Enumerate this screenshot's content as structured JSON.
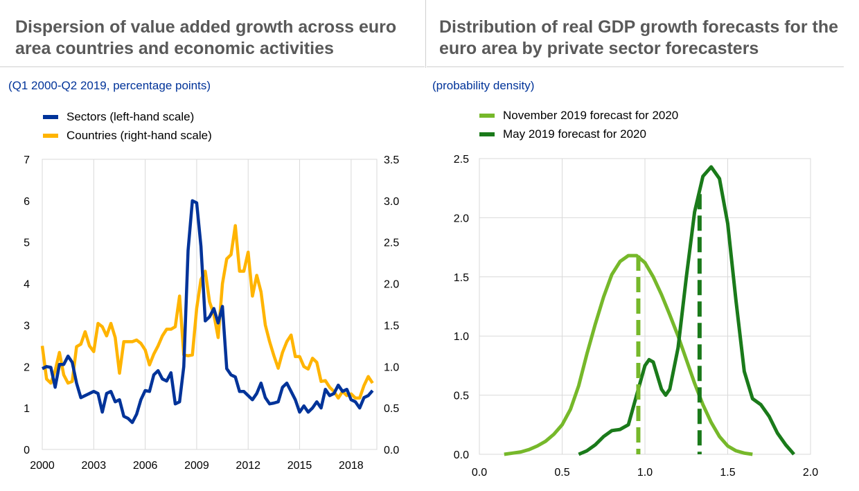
{
  "left_panel": {
    "title": "Dispersion of value added growth across euro area countries and economic activities",
    "subtitle": "(Q1 2000-Q2 2019, percentage points)"
  },
  "right_panel": {
    "title": "Distribution of real GDP growth forecasts for the euro area by private sector forecasters",
    "subtitle": "(probability density)"
  },
  "chart_data": [
    {
      "type": "line",
      "x_ticks": [
        "2000",
        "2003",
        "2006",
        "2009",
        "2012",
        "2015",
        "2018"
      ],
      "x_range": [
        2000,
        2019.5
      ],
      "y_left_ticks": [
        "0",
        "1",
        "2",
        "3",
        "4",
        "5",
        "6",
        "7"
      ],
      "y_left_range": [
        0,
        7
      ],
      "y_right_ticks": [
        "0.0",
        "0.5",
        "1.0",
        "1.5",
        "2.0",
        "2.5",
        "3.0",
        "3.5"
      ],
      "y_right_range": [
        0,
        3.5
      ],
      "grid": "vertical-at-x-ticks",
      "legend_placement": "top-left",
      "series": [
        {
          "name": "Sectors (left-hand scale)",
          "axis": "left",
          "color": "#003399",
          "x": [
            2000.0,
            2000.25,
            2000.5,
            2000.75,
            2001.0,
            2001.25,
            2001.5,
            2001.75,
            2002.0,
            2002.25,
            2002.5,
            2002.75,
            2003.0,
            2003.25,
            2003.5,
            2003.75,
            2004.0,
            2004.25,
            2004.5,
            2004.75,
            2005.0,
            2005.25,
            2005.5,
            2005.75,
            2006.0,
            2006.25,
            2006.5,
            2006.75,
            2007.0,
            2007.25,
            2007.5,
            2007.75,
            2008.0,
            2008.25,
            2008.5,
            2008.75,
            2009.0,
            2009.25,
            2009.5,
            2009.75,
            2010.0,
            2010.25,
            2010.5,
            2010.75,
            2011.0,
            2011.25,
            2011.5,
            2011.75,
            2012.0,
            2012.25,
            2012.5,
            2012.75,
            2013.0,
            2013.25,
            2013.5,
            2013.75,
            2014.0,
            2014.25,
            2014.5,
            2014.75,
            2015.0,
            2015.25,
            2015.5,
            2015.75,
            2016.0,
            2016.25,
            2016.5,
            2016.75,
            2017.0,
            2017.25,
            2017.5,
            2017.75,
            2018.0,
            2018.25,
            2018.5,
            2018.75,
            2019.0,
            2019.25
          ],
          "values": [
            1.95,
            2.0,
            1.98,
            1.5,
            2.05,
            2.05,
            2.25,
            2.1,
            1.6,
            1.25,
            1.3,
            1.35,
            1.4,
            1.35,
            0.9,
            1.35,
            1.4,
            1.15,
            1.2,
            0.8,
            0.75,
            0.65,
            0.85,
            1.2,
            1.42,
            1.4,
            1.8,
            1.9,
            1.7,
            1.65,
            1.85,
            1.1,
            1.15,
            2.0,
            4.8,
            6.0,
            5.95,
            4.9,
            3.1,
            3.2,
            3.4,
            3.05,
            3.45,
            1.95,
            1.8,
            1.75,
            1.4,
            1.4,
            1.3,
            1.2,
            1.35,
            1.6,
            1.25,
            1.1,
            1.12,
            1.15,
            1.5,
            1.6,
            1.4,
            1.2,
            0.9,
            1.05,
            0.9,
            1.0,
            1.15,
            1.0,
            1.45,
            1.3,
            1.35,
            1.55,
            1.4,
            1.45,
            1.2,
            1.15,
            1.0,
            1.25,
            1.3,
            1.42
          ]
        },
        {
          "name": "Countries (right-hand scale)",
          "axis": "right",
          "color": "#FFB400",
          "x": [
            2000.0,
            2000.25,
            2000.5,
            2000.75,
            2001.0,
            2001.25,
            2001.5,
            2001.75,
            2002.0,
            2002.25,
            2002.5,
            2002.75,
            2003.0,
            2003.25,
            2003.5,
            2003.75,
            2004.0,
            2004.25,
            2004.5,
            2004.75,
            2005.0,
            2005.25,
            2005.5,
            2005.75,
            2006.0,
            2006.25,
            2006.5,
            2006.75,
            2007.0,
            2007.25,
            2007.5,
            2007.75,
            2008.0,
            2008.25,
            2008.5,
            2008.75,
            2009.0,
            2009.25,
            2009.5,
            2009.75,
            2010.0,
            2010.25,
            2010.5,
            2010.75,
            2011.0,
            2011.25,
            2011.5,
            2011.75,
            2012.0,
            2012.25,
            2012.5,
            2012.75,
            2013.0,
            2013.25,
            2013.5,
            2013.75,
            2014.0,
            2014.25,
            2014.5,
            2014.75,
            2015.0,
            2015.25,
            2015.5,
            2015.75,
            2016.0,
            2016.25,
            2016.5,
            2016.75,
            2017.0,
            2017.25,
            2017.5,
            2017.75,
            2018.0,
            2018.25,
            2018.5,
            2018.75,
            2019.0,
            2019.25
          ],
          "values": [
            1.25,
            0.85,
            0.8,
            0.95,
            1.17,
            0.9,
            0.8,
            0.82,
            1.24,
            1.27,
            1.42,
            1.25,
            1.18,
            1.52,
            1.48,
            1.37,
            1.52,
            1.35,
            0.92,
            1.3,
            1.3,
            1.3,
            1.32,
            1.28,
            1.2,
            1.02,
            1.15,
            1.25,
            1.37,
            1.45,
            1.45,
            1.48,
            1.85,
            1.14,
            1.13,
            1.14,
            1.7,
            2.05,
            2.15,
            1.78,
            1.63,
            1.35,
            2.0,
            2.3,
            2.35,
            2.7,
            2.15,
            2.15,
            2.38,
            1.85,
            2.1,
            1.9,
            1.5,
            1.3,
            1.13,
            0.98,
            1.17,
            1.3,
            1.38,
            1.12,
            1.12,
            1.0,
            0.97,
            1.1,
            1.05,
            0.82,
            0.83,
            0.75,
            0.7,
            0.62,
            0.7,
            0.65,
            0.67,
            0.62,
            0.62,
            0.77,
            0.88,
            0.8
          ]
        }
      ]
    },
    {
      "type": "line",
      "x_ticks": [
        "0.0",
        "0.5",
        "1.0",
        "1.5",
        "2.0"
      ],
      "x_range": [
        0,
        2
      ],
      "y_ticks": [
        "0.0",
        "0.5",
        "1.0",
        "1.5",
        "2.0",
        "2.5"
      ],
      "y_range": [
        0,
        2.5
      ],
      "grid": "horizontal-and-vertical",
      "legend_placement": "top-left",
      "series": [
        {
          "name": "November 2019 forecast for 2020",
          "color": "#76B82A",
          "x": [
            0.15,
            0.2,
            0.25,
            0.3,
            0.35,
            0.4,
            0.45,
            0.5,
            0.55,
            0.6,
            0.65,
            0.7,
            0.75,
            0.8,
            0.85,
            0.9,
            0.95,
            1.0,
            1.05,
            1.1,
            1.15,
            1.2,
            1.25,
            1.3,
            1.35,
            1.4,
            1.45,
            1.5,
            1.55,
            1.6,
            1.65
          ],
          "values": [
            0.0,
            0.01,
            0.02,
            0.04,
            0.07,
            0.11,
            0.17,
            0.25,
            0.38,
            0.58,
            0.85,
            1.1,
            1.33,
            1.52,
            1.63,
            1.68,
            1.68,
            1.62,
            1.5,
            1.35,
            1.18,
            1.0,
            0.8,
            0.6,
            0.42,
            0.27,
            0.15,
            0.07,
            0.03,
            0.01,
            0.0
          ],
          "mean": 0.96
        },
        {
          "name": "May 2019 forecast for 2020",
          "color": "#1A7A1A",
          "x": [
            0.6,
            0.65,
            0.7,
            0.75,
            0.8,
            0.85,
            0.9,
            0.95,
            1.0,
            1.025,
            1.05,
            1.1,
            1.125,
            1.15,
            1.2,
            1.25,
            1.3,
            1.35,
            1.4,
            1.45,
            1.5,
            1.55,
            1.6,
            1.65,
            1.7,
            1.75,
            1.8,
            1.85,
            1.9
          ],
          "values": [
            0.0,
            0.03,
            0.08,
            0.15,
            0.2,
            0.21,
            0.25,
            0.5,
            0.75,
            0.8,
            0.78,
            0.55,
            0.5,
            0.55,
            0.9,
            1.5,
            2.05,
            2.35,
            2.43,
            2.33,
            1.95,
            1.3,
            0.7,
            0.47,
            0.42,
            0.32,
            0.18,
            0.08,
            0.0
          ],
          "mean": 1.33
        }
      ]
    }
  ]
}
